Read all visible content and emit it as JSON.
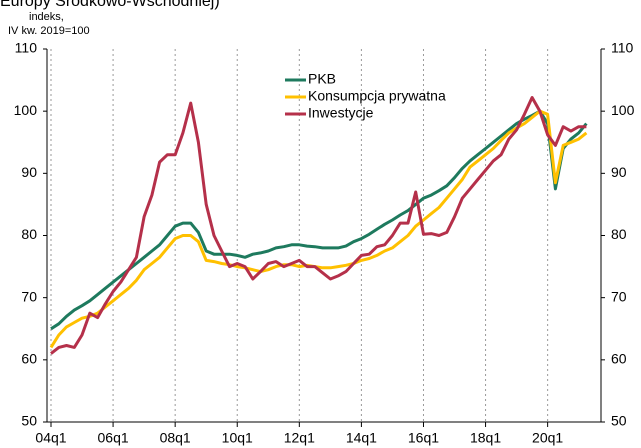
{
  "chart_data": {
    "type": "line",
    "title": "Europy Środkowo-Wschodniej)",
    "ylabel": [
      "indeks,",
      "IV kw. 2019=100"
    ],
    "categories": [
      "04q1",
      null,
      null,
      null,
      null,
      null,
      null,
      null,
      "06q1",
      null,
      null,
      null,
      null,
      null,
      null,
      null,
      "08q1",
      null,
      null,
      null,
      null,
      null,
      null,
      null,
      "10q1",
      null,
      null,
      null,
      null,
      null,
      null,
      null,
      "12q1",
      null,
      null,
      null,
      null,
      null,
      null,
      null,
      "14q1",
      null,
      null,
      null,
      null,
      null,
      null,
      null,
      "16q1",
      null,
      null,
      null,
      null,
      null,
      null,
      null,
      "18q1",
      null,
      null,
      null,
      null,
      null,
      null,
      null,
      "20q1",
      null,
      null,
      null,
      null,
      null
    ],
    "series": [
      {
        "name": "PKB",
        "color": "#1e7a5e",
        "values": [
          65,
          65.8,
          67,
          68,
          68.7,
          69.5,
          70.5,
          71.5,
          72.5,
          73.5,
          74.5,
          75.5,
          76.5,
          77.5,
          78.5,
          80,
          81.5,
          82,
          82,
          80.5,
          77.5,
          77,
          77,
          77,
          76.8,
          76.5,
          77,
          77.2,
          77.5,
          78,
          78.2,
          78.5,
          78.5,
          78.3,
          78.2,
          78,
          78,
          78,
          78.3,
          79,
          79.5,
          80.2,
          81,
          81.8,
          82.5,
          83.3,
          84,
          85,
          86,
          86.5,
          87.2,
          88,
          89.3,
          90.8,
          92,
          93,
          94,
          95,
          96,
          97,
          98,
          98.7,
          99.3,
          100,
          98,
          87.5,
          94,
          95.5,
          96.5,
          98
        ]
      },
      {
        "name": "Konsumpcja prywatna",
        "color": "#ffc000",
        "values": [
          62,
          64,
          65.3,
          66,
          66.7,
          67,
          67.5,
          68.5,
          69.5,
          70.5,
          71.5,
          72.8,
          74.5,
          75.5,
          76.5,
          78,
          79.5,
          80,
          80,
          79,
          76,
          75.8,
          75.5,
          75.3,
          75,
          74.8,
          74.5,
          74.2,
          74.5,
          75,
          75.3,
          75.3,
          75,
          75.2,
          75,
          74.8,
          74.8,
          75,
          75.2,
          75.5,
          76,
          76.3,
          76.8,
          77.5,
          78,
          79,
          80,
          81.5,
          82.5,
          83.5,
          84.5,
          86,
          87.5,
          89,
          91,
          92,
          93,
          94,
          95.3,
          96.5,
          97.3,
          98,
          99,
          100,
          99.5,
          88.5,
          94.5,
          95,
          95.5,
          96.5
        ]
      },
      {
        "name": "Inwestycje",
        "color": "#b5304a",
        "values": [
          61,
          62,
          62.3,
          62,
          64,
          67.5,
          66.8,
          69,
          71,
          72.5,
          74.5,
          76.5,
          83,
          86.5,
          91.8,
          93,
          93,
          96.5,
          101.3,
          95,
          85,
          80,
          77.5,
          75,
          75.5,
          75,
          73,
          74.2,
          75.5,
          75.8,
          75,
          75.5,
          76,
          75,
          75,
          74,
          73,
          73.5,
          74.2,
          75.5,
          76.8,
          77,
          78.2,
          78.5,
          80,
          82,
          82,
          87,
          80.2,
          80.3,
          80,
          80.5,
          83,
          86,
          87.5,
          89,
          90.5,
          92,
          93,
          95.5,
          97,
          99.5,
          102.2,
          100,
          96.2,
          94.5,
          97.5,
          96.8,
          97.5,
          97.5
        ]
      }
    ],
    "ylim": [
      50,
      110
    ],
    "yticks": [
      50,
      60,
      70,
      80,
      90,
      100,
      110
    ],
    "grid": true,
    "legend": "top"
  }
}
